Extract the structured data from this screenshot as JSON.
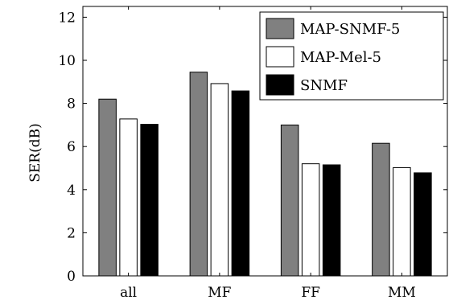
{
  "chart_data": {
    "type": "bar",
    "title": "",
    "xlabel": "",
    "ylabel": "SER(dB)",
    "categories": [
      "all",
      "MF",
      "FF",
      "MM"
    ],
    "series": [
      {
        "name": "MAP-SNMF-5",
        "color": "#808080",
        "values": [
          8.2,
          9.45,
          7.0,
          6.15
        ]
      },
      {
        "name": "MAP-Mel-5",
        "color": "#ffffff",
        "values": [
          7.28,
          8.92,
          5.2,
          5.02
        ]
      },
      {
        "name": "SNMF",
        "color": "#000000",
        "values": [
          7.03,
          8.58,
          5.15,
          4.78
        ]
      }
    ],
    "ylim": [
      0,
      12.5
    ],
    "yticks": [
      0,
      2,
      4,
      6,
      8,
      10,
      12
    ],
    "legend_position": "top-right",
    "grid": false
  }
}
